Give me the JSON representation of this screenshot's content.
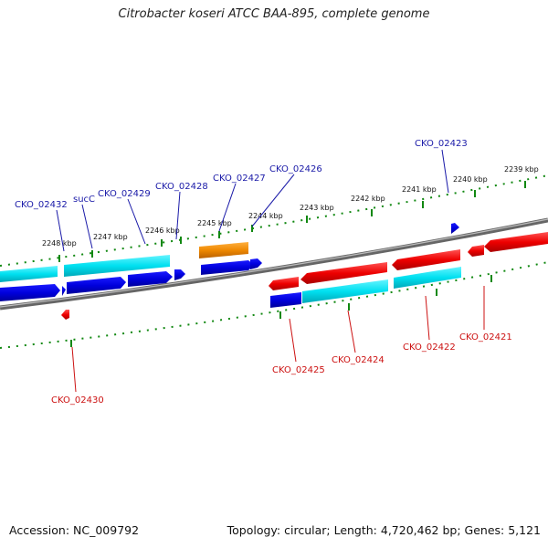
{
  "title": "Citrobacter koseri ATCC BAA-895, complete genome",
  "footer": {
    "accession": "Accession: NC_009792",
    "summary": "Topology: circular; Length: 4,720,462 bp; Genes: 5,121"
  },
  "colors": {
    "forward_cds": "#0000dd",
    "forward_rna": "#00e0f0",
    "reverse_cds": "#ee0000",
    "reverse_rna": "#00e0f0",
    "pseudo": "#ee8800",
    "forward_label": "#1a1aa8",
    "reverse_label": "#cc1111",
    "backbone": "#777777",
    "ticks": "#118811"
  },
  "scale_labels": [
    "2248 kbp",
    "2247 kbp",
    "2246 kbp",
    "2245 kbp",
    "2244 kbp",
    "2243 kbp",
    "2242 kbp",
    "2241 kbp",
    "2240 kbp",
    "2239 kbp"
  ],
  "forward_labels": [
    "CKO_02432",
    "sucC",
    "CKO_02429",
    "CKO_02428",
    "CKO_02427",
    "CKO_02426",
    "CKO_02423"
  ],
  "reverse_labels": [
    "CKO_02430",
    "CKO_02425",
    "CKO_02424",
    "CKO_02422",
    "CKO_02421"
  ]
}
